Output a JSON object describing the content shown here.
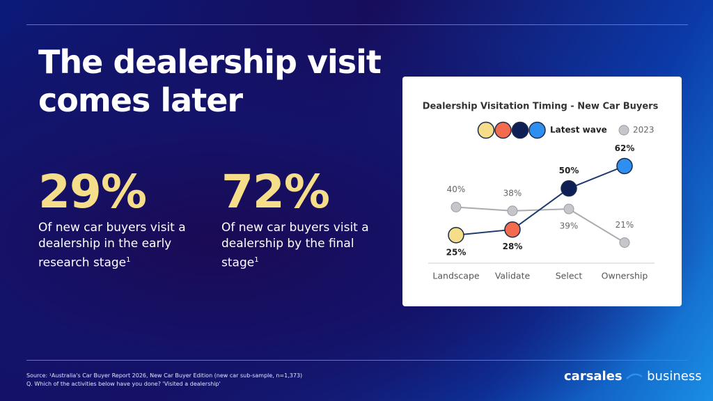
{
  "slide": {
    "title": "The dealership visit comes later",
    "stats": [
      {
        "figure": "29%",
        "description": "Of new car buyers visit a dealership in the early research stage",
        "note": "1"
      },
      {
        "figure": "72%",
        "description": "Of new car buyers visit a dealership by the final stage",
        "note": "1"
      }
    ],
    "source": [
      "Source: ¹Australia's Car Buyer Report 2026, New Car Buyer Edition (new car sub-sample, n=1,373)",
      "Q. Which of the activities below have you done? 'Visited a dealership'"
    ],
    "logo": {
      "brand": "carsales",
      "unit": "business"
    }
  },
  "chart_data": {
    "type": "line",
    "title": "Dealership Visitation Timing - New Car Buyers",
    "categories": [
      "Landscape",
      "Validate",
      "Select",
      "Ownership"
    ],
    "series": [
      {
        "name": "Latest wave",
        "color": "#1e3a6e",
        "point_colors": [
          "#f5dd8a",
          "#f26b4f",
          "#0d1f55",
          "#2f8ff0"
        ],
        "values": [
          25,
          28,
          50,
          62
        ],
        "value_labels": [
          "25%",
          "28%",
          "50%",
          "62%"
        ]
      },
      {
        "name": "2023",
        "color": "#a9abb0",
        "values": [
          40,
          38,
          39,
          21
        ],
        "value_labels": [
          "40%",
          "38%",
          "39%",
          "21%"
        ]
      }
    ],
    "ylim": [
      10,
      70
    ],
    "grid": false
  }
}
